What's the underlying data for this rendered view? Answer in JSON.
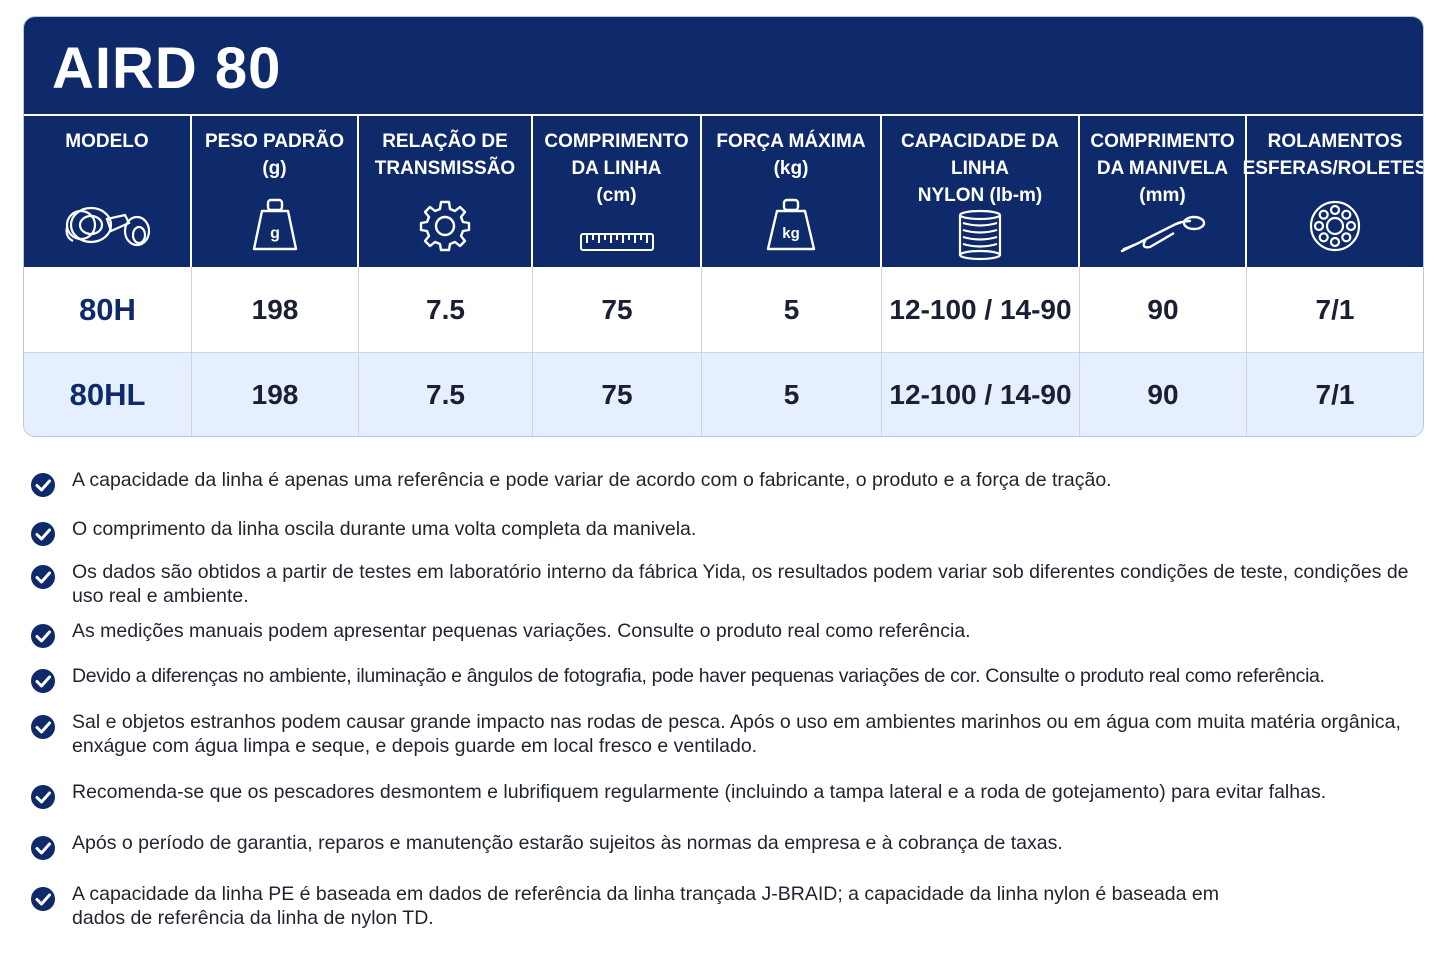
{
  "title": "AIRD 80",
  "colors": {
    "navy": "#0e2a6b",
    "row_alt": "#e6efff",
    "check": "#0e2a6b"
  },
  "headers": [
    {
      "label": "MODELO",
      "icon": "reel-icon"
    },
    {
      "label": "PESO PADRÃO\n(g)",
      "icon": "weight-g-icon",
      "icon_text": "g"
    },
    {
      "label": "RELAÇÃO DE\nTRANSMISSÃO",
      "icon": "gear-icon"
    },
    {
      "label": "COMPRIMENTO\nDA LINHA\n(cm)",
      "icon": "ruler-icon"
    },
    {
      "label": "FORÇA MÁXIMA\n(kg)",
      "icon": "weight-kg-icon",
      "icon_text": "kg"
    },
    {
      "label": "CAPACIDADE DA LINHA\nNYLON (lb-m)",
      "icon": "spool-icon"
    },
    {
      "label": "COMPRIMENTO\nDA MANIVELA\n(mm)",
      "icon": "crank-handle-icon"
    },
    {
      "label": "ROLAMENTOS\nESFERAS/ROLETES",
      "icon": "bearing-icon"
    }
  ],
  "rows": [
    [
      "80H",
      "198",
      "7.5",
      "75",
      "5",
      "12-100 / 14-90",
      "90",
      "7/1"
    ],
    [
      "80HL",
      "198",
      "7.5",
      "75",
      "5",
      "12-100 / 14-90",
      "90",
      "7/1"
    ]
  ],
  "notes": [
    "A capacidade da linha é apenas uma referência e pode variar de acordo com o fabricante, o produto e a força de tração.",
    "O comprimento da linha oscila durante uma volta completa da manivela.",
    "Os dados são obtidos a partir de testes em laboratório interno da fábrica Yida, os resultados podem variar sob diferentes condições de teste, condições de uso real e ambiente.",
    "As medições manuais podem apresentar pequenas variações. Consulte o produto real como referência.",
    "Devido a diferenças no ambiente, iluminação e ângulos de fotografia, pode haver pequenas variações de cor. Consulte o produto real como referência.",
    "Sal e objetos estranhos podem causar grande impacto nas rodas de pesca. Após o uso em ambientes marinhos ou em água com muita matéria orgânica, enxágue com água limpa e seque, e depois guarde em local fresco e ventilado.",
    "Recomenda-se que os pescadores desmontem e lubrifiquem regularmente (incluindo a tampa lateral e a roda de gotejamento) para evitar falhas.",
    "Após o período de garantia, reparos e manutenção estarão sujeitos às normas da empresa e à cobrança de taxas.",
    "A capacidade da linha PE é baseada em dados de referência da linha trançada J-BRAID; a capacidade da linha nylon é baseada em dados de referência da linha de nylon TD."
  ]
}
